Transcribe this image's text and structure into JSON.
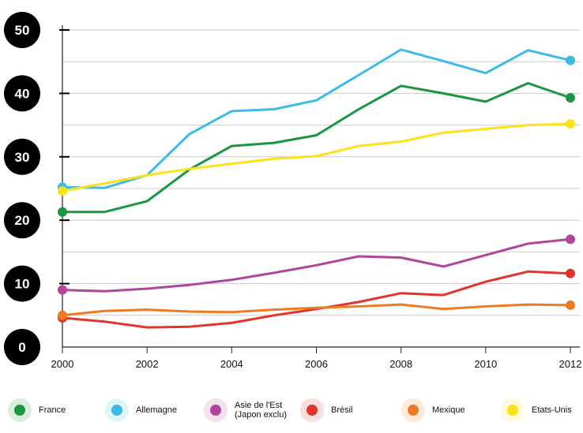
{
  "chart_data": {
    "type": "line",
    "x": [
      2000,
      2001,
      2002,
      2003,
      2004,
      2005,
      2006,
      2007,
      2008,
      2009,
      2010,
      2011,
      2012
    ],
    "x_ticks": [
      2000,
      2002,
      2004,
      2006,
      2008,
      2010,
      2012
    ],
    "y_ticks": [
      0,
      10,
      20,
      30,
      40,
      50
    ],
    "ylim": [
      0,
      50
    ],
    "xlim": [
      2000,
      2012
    ],
    "grid": true,
    "legend_position": "bottom",
    "series": [
      {
        "name": "France",
        "color": "#1a9641",
        "values": [
          21.3,
          21.3,
          23.0,
          28.0,
          31.7,
          32.2,
          33.4,
          37.5,
          41.2,
          40.0,
          38.7,
          41.6,
          39.3
        ]
      },
      {
        "name": "Allemagne",
        "color": "#3bbbea",
        "values": [
          25.2,
          25.1,
          27.1,
          33.6,
          37.2,
          37.5,
          38.9,
          42.9,
          46.9,
          45.1,
          43.2,
          46.8,
          45.2
        ]
      },
      {
        "name": "Asie de l'Est\n(Japon exclu)",
        "color": "#b0459a",
        "values": [
          9.0,
          8.8,
          9.2,
          9.8,
          10.6,
          11.7,
          12.9,
          14.3,
          14.1,
          12.7,
          14.5,
          16.3,
          17.0
        ]
      },
      {
        "name": "Brésil",
        "color": "#e3332a",
        "values": [
          4.6,
          4.0,
          3.1,
          3.2,
          3.8,
          5.0,
          6.0,
          7.1,
          8.5,
          8.2,
          10.3,
          11.9,
          11.6
        ]
      },
      {
        "name": "Mexique",
        "color": "#ee7b23",
        "values": [
          5.0,
          5.7,
          5.9,
          5.6,
          5.5,
          5.9,
          6.2,
          6.4,
          6.7,
          6.0,
          6.4,
          6.7,
          6.6
        ]
      },
      {
        "name": "Etats-Unis",
        "color": "#fde21a",
        "values": [
          24.6,
          25.8,
          27.1,
          28.1,
          28.9,
          29.7,
          30.1,
          31.7,
          32.4,
          33.8,
          34.4,
          35.0,
          35.2
        ]
      }
    ]
  }
}
